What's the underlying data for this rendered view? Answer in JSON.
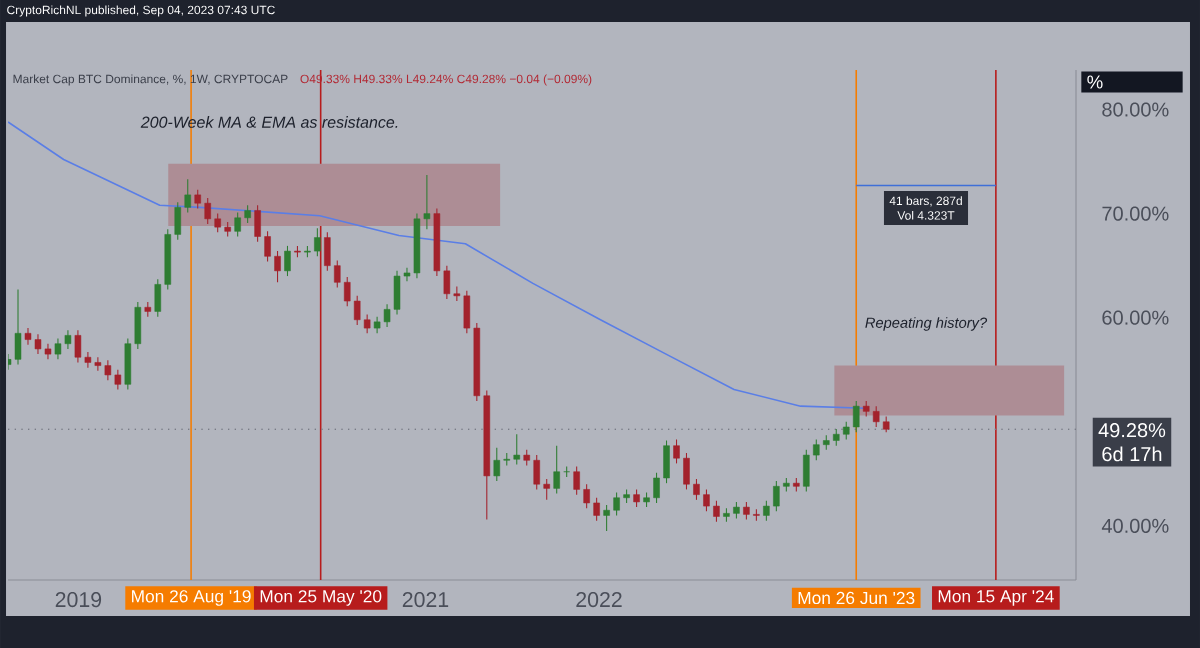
{
  "chart_data": {
    "type": "candlestick",
    "title": "Market Cap BTC Dominance, %, 1W, CRYPTOCAP",
    "subtitle": "O49.33% H49.33% L49.24% C49.28% −0.04 (−0.09%)",
    "ylabel": "%",
    "annotations": [
      "CryptoRichNL published, Sep 04, 2023 07:43 UTC",
      "200-Week MA & EMA as resistance.",
      "Repeating history?",
      "41 bars, 287d",
      "Vol 4.323T",
      "6d 17h"
    ],
    "xlim": [
      "2018-08-06",
      "2024-10-01"
    ],
    "ylim": [
      34.8,
      83.8
    ],
    "xticks": [
      {
        "value": "2019-01-01",
        "label": "2019"
      },
      {
        "value": "2021-01-01",
        "label": "2021"
      },
      {
        "value": "2022-01-01",
        "label": "2022"
      }
    ],
    "yticks": [
      {
        "value": 40,
        "label": "40.00%"
      },
      {
        "value": 60,
        "label": "60.00%"
      },
      {
        "value": 70,
        "label": "70.00%"
      },
      {
        "value": 80,
        "label": "80.00%"
      }
    ],
    "ref_lines": [
      {
        "axis": "x",
        "value": "2019-08-26",
        "label": "Mon 26 Aug '19",
        "color": "#f57c00"
      },
      {
        "axis": "x",
        "value": "2020-05-25",
        "label": "Mon 25 May '20",
        "color": "#b71c1c"
      },
      {
        "axis": "x",
        "value": "2023-06-26",
        "label": "Mon 26 Jun '23",
        "color": "#f57c00"
      },
      {
        "axis": "x",
        "value": "2024-04-15",
        "label": "Mon 15 Apr '24",
        "color": "#b71c1c"
      },
      {
        "axis": "y",
        "value": 49.28,
        "label": "49.28%",
        "color": "#787b86",
        "line_style": "dotted"
      }
    ],
    "series": [
      {
        "type": "line",
        "color": "#ad8d95",
        "x": [
          "2019-07-09",
          "2021-06-07"
        ],
        "values": [
          null,
          null
        ],
        "lower": [
          68.8,
          68.8
        ],
        "upper": [
          74.8,
          74.8
        ]
      },
      {
        "type": "line",
        "color": "#ad8d95",
        "x": [
          "2023-05-11",
          "2024-09-06"
        ],
        "values": [
          null,
          null
        ],
        "lower": [
          50.6,
          50.6
        ],
        "upper": [
          55.4,
          55.4
        ]
      },
      {
        "type": "line",
        "color": "#5a7ee6",
        "x": [
          "2018-08-06",
          "2018-12-01",
          "2019-06-21",
          "2019-09-13",
          "2020-05-23",
          "2020-11-06",
          "2021-03-26",
          "2021-08-15",
          "2022-01-04",
          "2022-05-22",
          "2022-10-12",
          "2023-03-01",
          "2023-07-16"
        ],
        "values": [
          78.8,
          75.2,
          70.8,
          70.6,
          69.8,
          67.9,
          67.1,
          63.3,
          59.8,
          56.5,
          53.1,
          51.5,
          51.3
        ]
      },
      {
        "type": "line",
        "color": "#3f6fd8",
        "x": [
          "2023-06-26",
          "2024-04-15"
        ],
        "values": [
          72.7,
          72.7
        ]
      },
      {
        "x": [
          "2018-08-06",
          "2018-08-27",
          "2018-09-17",
          "2018-10-08",
          "2018-10-29",
          "2018-11-19",
          "2018-12-10",
          "2018-12-31",
          "2019-01-21",
          "2019-02-11",
          "2019-03-04",
          "2019-03-25",
          "2019-04-15",
          "2019-05-06",
          "2019-05-27",
          "2019-06-17",
          "2019-07-08",
          "2019-07-29",
          "2019-08-19",
          "2019-09-09",
          "2019-09-30",
          "2019-10-21",
          "2019-11-11",
          "2019-12-02",
          "2019-12-23",
          "2020-01-13",
          "2020-02-03",
          "2020-02-24",
          "2020-03-16",
          "2020-04-06",
          "2020-04-27",
          "2020-05-18",
          "2020-06-08",
          "2020-06-29",
          "2020-07-20",
          "2020-08-10",
          "2020-08-31",
          "2020-09-21",
          "2020-10-12",
          "2020-11-02",
          "2020-11-23",
          "2020-12-14",
          "2021-01-04",
          "2021-01-25",
          "2021-02-15",
          "2021-03-08",
          "2021-03-29",
          "2021-04-19",
          "2021-05-10",
          "2021-05-31",
          "2021-06-21",
          "2021-07-12",
          "2021-08-02",
          "2021-08-23",
          "2021-09-13",
          "2021-10-04",
          "2021-10-25",
          "2021-11-15",
          "2021-12-06",
          "2021-12-27",
          "2022-01-17",
          "2022-02-07",
          "2022-02-28",
          "2022-03-21",
          "2022-04-11",
          "2022-05-02",
          "2022-05-23",
          "2022-06-13",
          "2022-07-04",
          "2022-07-25",
          "2022-08-15",
          "2022-09-05",
          "2022-09-26",
          "2022-10-17",
          "2022-11-07",
          "2022-11-28",
          "2022-12-19",
          "2023-01-09",
          "2023-01-30",
          "2023-02-20",
          "2023-03-13",
          "2023-04-03",
          "2023-04-24",
          "2023-05-15",
          "2023-06-05",
          "2023-06-26",
          "2023-07-17",
          "2023-08-07",
          "2023-08-28"
        ],
        "ohlc": [
          [
            55.5,
            56.5,
            55.0,
            56.0
          ],
          [
            56.0,
            62.7,
            55.5,
            58.5
          ],
          [
            58.5,
            59.0,
            57.4,
            57.9
          ],
          [
            57.9,
            58.4,
            56.5,
            57.0
          ],
          [
            57.0,
            57.5,
            56.0,
            56.5
          ],
          [
            56.5,
            58.0,
            56.0,
            57.5
          ],
          [
            57.5,
            58.8,
            57.0,
            58.3
          ],
          [
            58.3,
            58.8,
            55.7,
            56.2
          ],
          [
            56.2,
            56.7,
            55.2,
            55.7
          ],
          [
            55.7,
            56.2,
            54.9,
            55.4
          ],
          [
            55.4,
            55.9,
            54.0,
            54.5
          ],
          [
            54.5,
            55.0,
            53.1,
            53.6
          ],
          [
            53.6,
            58.0,
            53.1,
            57.5
          ],
          [
            57.5,
            61.5,
            57.0,
            61.0
          ],
          [
            61.0,
            61.5,
            60.1,
            60.6
          ],
          [
            60.6,
            63.7,
            60.1,
            63.2
          ],
          [
            63.2,
            68.5,
            62.7,
            68.0
          ],
          [
            68.0,
            71.1,
            67.5,
            70.6
          ],
          [
            70.6,
            73.3,
            70.1,
            71.8
          ],
          [
            71.8,
            72.3,
            70.5,
            71.0
          ],
          [
            71.0,
            71.5,
            69.0,
            69.5
          ],
          [
            69.5,
            70.0,
            68.2,
            68.7
          ],
          [
            68.7,
            69.2,
            67.8,
            68.3
          ],
          [
            68.3,
            70.1,
            67.8,
            69.6
          ],
          [
            69.6,
            70.8,
            69.1,
            70.3
          ],
          [
            70.3,
            70.8,
            67.3,
            67.8
          ],
          [
            67.8,
            68.3,
            65.4,
            65.9
          ],
          [
            65.9,
            66.4,
            63.4,
            64.5
          ],
          [
            64.5,
            66.9,
            64.0,
            66.4
          ],
          [
            66.4,
            66.9,
            65.8,
            66.3
          ],
          [
            66.3,
            66.9,
            65.8,
            66.4
          ],
          [
            66.4,
            68.6,
            65.9,
            67.7
          ],
          [
            67.7,
            68.2,
            64.5,
            65.0
          ],
          [
            65.0,
            65.5,
            62.9,
            63.4
          ],
          [
            63.4,
            63.9,
            61.1,
            61.6
          ],
          [
            61.6,
            62.1,
            59.3,
            59.8
          ],
          [
            59.8,
            60.3,
            58.5,
            59.0
          ],
          [
            59.0,
            60.1,
            58.5,
            59.6
          ],
          [
            59.6,
            61.3,
            59.1,
            60.8
          ],
          [
            60.8,
            64.5,
            60.3,
            64.0
          ],
          [
            64.0,
            64.8,
            63.5,
            64.3
          ],
          [
            64.3,
            70.0,
            63.8,
            69.5
          ],
          [
            69.5,
            73.7,
            68.5,
            70.0
          ],
          [
            70.0,
            70.5,
            64.0,
            64.5
          ],
          [
            64.5,
            65.0,
            61.8,
            62.3
          ],
          [
            62.3,
            63.0,
            61.6,
            62.1
          ],
          [
            62.1,
            62.6,
            58.5,
            59.0
          ],
          [
            59.0,
            59.5,
            52.0,
            52.5
          ],
          [
            52.5,
            53.0,
            40.6,
            44.8
          ],
          [
            44.8,
            47.5,
            44.3,
            46.3
          ],
          [
            46.3,
            47.0,
            45.8,
            46.4
          ],
          [
            46.4,
            48.8,
            45.9,
            46.8
          ],
          [
            46.8,
            47.3,
            45.8,
            46.3
          ],
          [
            46.3,
            46.8,
            43.5,
            44.0
          ],
          [
            44.0,
            44.5,
            42.5,
            43.6
          ],
          [
            43.6,
            47.7,
            43.1,
            45.2
          ],
          [
            45.2,
            45.7,
            44.7,
            45.2
          ],
          [
            45.2,
            45.7,
            43.0,
            43.5
          ],
          [
            43.5,
            44.0,
            41.7,
            42.2
          ],
          [
            42.2,
            42.7,
            40.5,
            41.0
          ],
          [
            41.0,
            42.0,
            39.5,
            41.5
          ],
          [
            41.5,
            43.2,
            41.0,
            42.7
          ],
          [
            42.7,
            43.5,
            42.2,
            43.0
          ],
          [
            43.0,
            43.5,
            41.8,
            42.3
          ],
          [
            42.3,
            43.2,
            41.8,
            42.7
          ],
          [
            42.7,
            45.1,
            42.2,
            44.6
          ],
          [
            44.6,
            48.2,
            44.1,
            47.7
          ],
          [
            47.7,
            48.3,
            46.0,
            46.5
          ],
          [
            46.5,
            47.0,
            43.5,
            44.0
          ],
          [
            44.0,
            44.5,
            42.5,
            43.0
          ],
          [
            43.0,
            43.5,
            41.4,
            41.9
          ],
          [
            41.9,
            42.4,
            40.4,
            40.9
          ],
          [
            40.9,
            41.7,
            40.4,
            41.2
          ],
          [
            41.2,
            42.3,
            40.7,
            41.8
          ],
          [
            41.8,
            42.3,
            40.6,
            41.1
          ],
          [
            41.1,
            41.6,
            40.5,
            41.0
          ],
          [
            41.0,
            42.4,
            40.5,
            41.9
          ],
          [
            41.9,
            44.3,
            41.4,
            43.8
          ],
          [
            43.8,
            44.6,
            43.3,
            44.1
          ],
          [
            44.1,
            44.6,
            43.3,
            43.8
          ],
          [
            43.8,
            47.3,
            43.3,
            46.8
          ],
          [
            46.8,
            48.3,
            46.3,
            47.8
          ],
          [
            47.8,
            48.7,
            47.3,
            48.2
          ],
          [
            48.2,
            49.3,
            47.7,
            48.8
          ],
          [
            48.8,
            50.0,
            48.3,
            49.5
          ],
          [
            49.5,
            52.0,
            49.0,
            51.5
          ],
          [
            51.5,
            52.0,
            50.5,
            51.0
          ],
          [
            51.0,
            51.5,
            49.5,
            50.0
          ],
          [
            50.0,
            50.5,
            49.0,
            49.28
          ]
        ]
      }
    ]
  }
}
